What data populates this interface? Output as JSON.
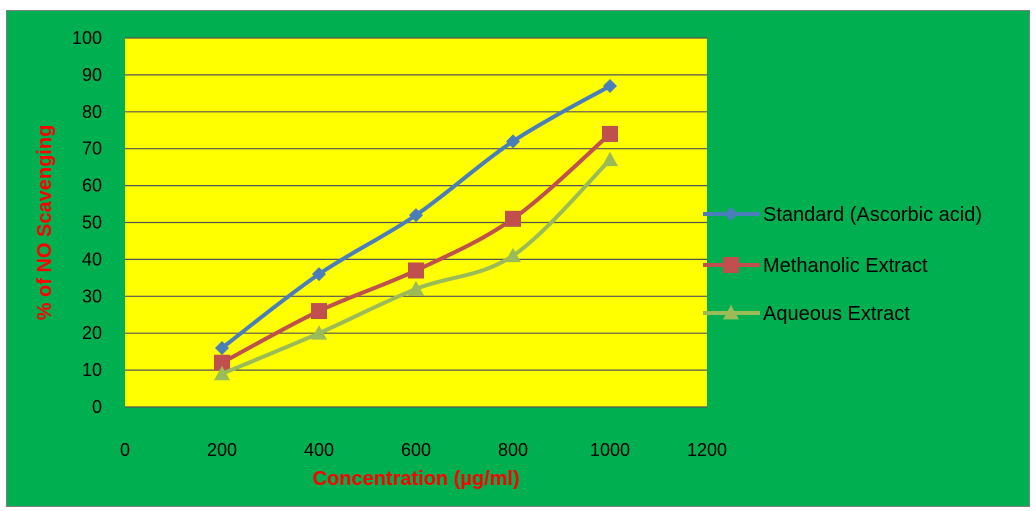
{
  "colors": {
    "chart_background": "#00b050",
    "plot_background": "#ffff00",
    "gridline": "#555555",
    "axis_title": "#ff0000",
    "tick_text": "#000000",
    "legend_text": "#000000"
  },
  "chart_data": {
    "type": "line",
    "title": "",
    "xlabel": "Concentration (µg/ml)",
    "ylabel": "% of NO Scavenging",
    "x": [
      200,
      400,
      600,
      800,
      1000
    ],
    "xlim": [
      0,
      1200
    ],
    "ylim": [
      0,
      100
    ],
    "x_ticks": [
      "0",
      "200",
      "400",
      "600",
      "800",
      "1000",
      "1200"
    ],
    "y_ticks": [
      "0",
      "10",
      "20",
      "30",
      "40",
      "50",
      "60",
      "70",
      "80",
      "90",
      "100"
    ],
    "grid": "horizontal",
    "legend_position": "right",
    "series": [
      {
        "name": "Standard (Ascorbic acid)",
        "values": [
          16,
          36,
          52,
          72,
          87
        ],
        "color": "#4a7ebb",
        "marker": "diamond"
      },
      {
        "name": "Methanolic Extract",
        "values": [
          12,
          26,
          37,
          51,
          74
        ],
        "color": "#c0504d",
        "marker": "square"
      },
      {
        "name": "Aqueous Extract",
        "values": [
          9,
          20,
          32,
          41,
          67
        ],
        "color": "#9bbb59",
        "marker": "triangle"
      }
    ]
  }
}
